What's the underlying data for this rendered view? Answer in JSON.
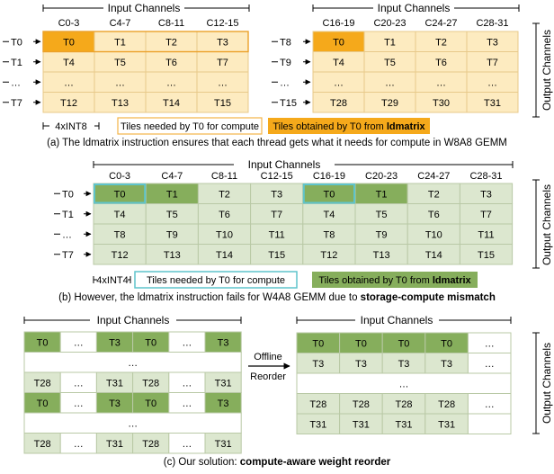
{
  "colors": {
    "orange_light": "#fdebc0",
    "orange_border": "#eba12a",
    "orange_dark": "#f5a91b",
    "green_light": "#dce7cf",
    "green_dark": "#86ae5c",
    "green_border": "#7e9c63",
    "cyan": "#5fc4cc",
    "text": "#000000"
  },
  "panel_a": {
    "input_channels_label": "Input Channels",
    "output_channels_label": "Output Channels",
    "left_columns": [
      "C0-3",
      "C4-7",
      "C8-11",
      "C12-15"
    ],
    "right_columns": [
      "C16-19",
      "C20-23",
      "C24-27",
      "C28-31"
    ],
    "left_row_labels": [
      "T0",
      "T1",
      "…",
      "T7"
    ],
    "right_row_labels": [
      "T8",
      "T9",
      "…",
      "T15"
    ],
    "left_cells": [
      [
        "T0",
        "T1",
        "T2",
        "T3"
      ],
      [
        "T4",
        "T5",
        "T6",
        "T7"
      ],
      [
        "…",
        "…",
        "…",
        "…"
      ],
      [
        "T12",
        "T13",
        "T14",
        "T15"
      ]
    ],
    "right_cells": [
      [
        "T0",
        "T1",
        "T2",
        "T3"
      ],
      [
        "T4",
        "T5",
        "T6",
        "T7"
      ],
      [
        "…",
        "…",
        "…",
        "…"
      ],
      [
        "T28",
        "T29",
        "T30",
        "T31"
      ]
    ],
    "width_label": "4xINT8",
    "legend_needed": "Tiles needed by T0 for compute",
    "legend_obtained_prefix": "Tiles obtained by T0 from ",
    "legend_obtained_bold": "ldmatrix",
    "caption": "(a) The ldmatrix instruction ensures that each thread gets what it needs for compute in W8A8 GEMM"
  },
  "panel_b": {
    "input_channels_label": "Input Channels",
    "output_channels_label": "Output Channels",
    "columns": [
      "C0-3",
      "C4-7",
      "C8-11",
      "C12-15",
      "C16-19",
      "C20-23",
      "C24-27",
      "C28-31"
    ],
    "row_labels": [
      "T0",
      "T1",
      "…",
      "T7"
    ],
    "cells": [
      [
        "T0",
        "T1",
        "T2",
        "T3",
        "T0",
        "T1",
        "T2",
        "T3"
      ],
      [
        "T4",
        "T5",
        "T6",
        "T7",
        "T4",
        "T5",
        "T6",
        "T7"
      ],
      [
        "T8",
        "T9",
        "T10",
        "T11",
        "T8",
        "T9",
        "T10",
        "T11"
      ],
      [
        "T12",
        "T13",
        "T14",
        "T15",
        "T12",
        "T13",
        "T14",
        "T15"
      ]
    ],
    "width_label": "4xINT4",
    "legend_needed": "Tiles needed by T0 for compute",
    "legend_obtained_prefix": "Tiles obtained by T0 from ",
    "legend_obtained_bold": "ldmatrix",
    "caption_prefix": "(b) However, the ldmatrix instruction fails for W4A8 GEMM due to ",
    "caption_bold": "storage-compute mismatch"
  },
  "panel_c": {
    "input_channels_label": "Input Channels",
    "output_channels_label": "Output Channels",
    "left_cells": [
      [
        "T0",
        "…",
        "T3",
        "T0",
        "…",
        "T3"
      ],
      [
        "…"
      ],
      [
        "T28",
        "…",
        "T31",
        "T28",
        "…",
        "T31"
      ],
      [
        "T0",
        "…",
        "T3",
        "T0",
        "…",
        "T3"
      ],
      [
        "…"
      ],
      [
        "T28",
        "…",
        "T31",
        "T28",
        "…",
        "T31"
      ]
    ],
    "right_cells": [
      [
        "T0",
        "T0",
        "T0",
        "T0",
        "…"
      ],
      [
        "T3",
        "T3",
        "T3",
        "T3",
        "…"
      ],
      [
        "…"
      ],
      [
        "T28",
        "T28",
        "T28",
        "T28",
        "…"
      ],
      [
        "T31",
        "T31",
        "T31",
        "T31",
        ""
      ]
    ],
    "arrow_label_line1": "Offline",
    "arrow_label_line2": "Reorder",
    "caption_prefix": "(c) Our solution: ",
    "caption_bold": "compute-aware weight reorder"
  }
}
